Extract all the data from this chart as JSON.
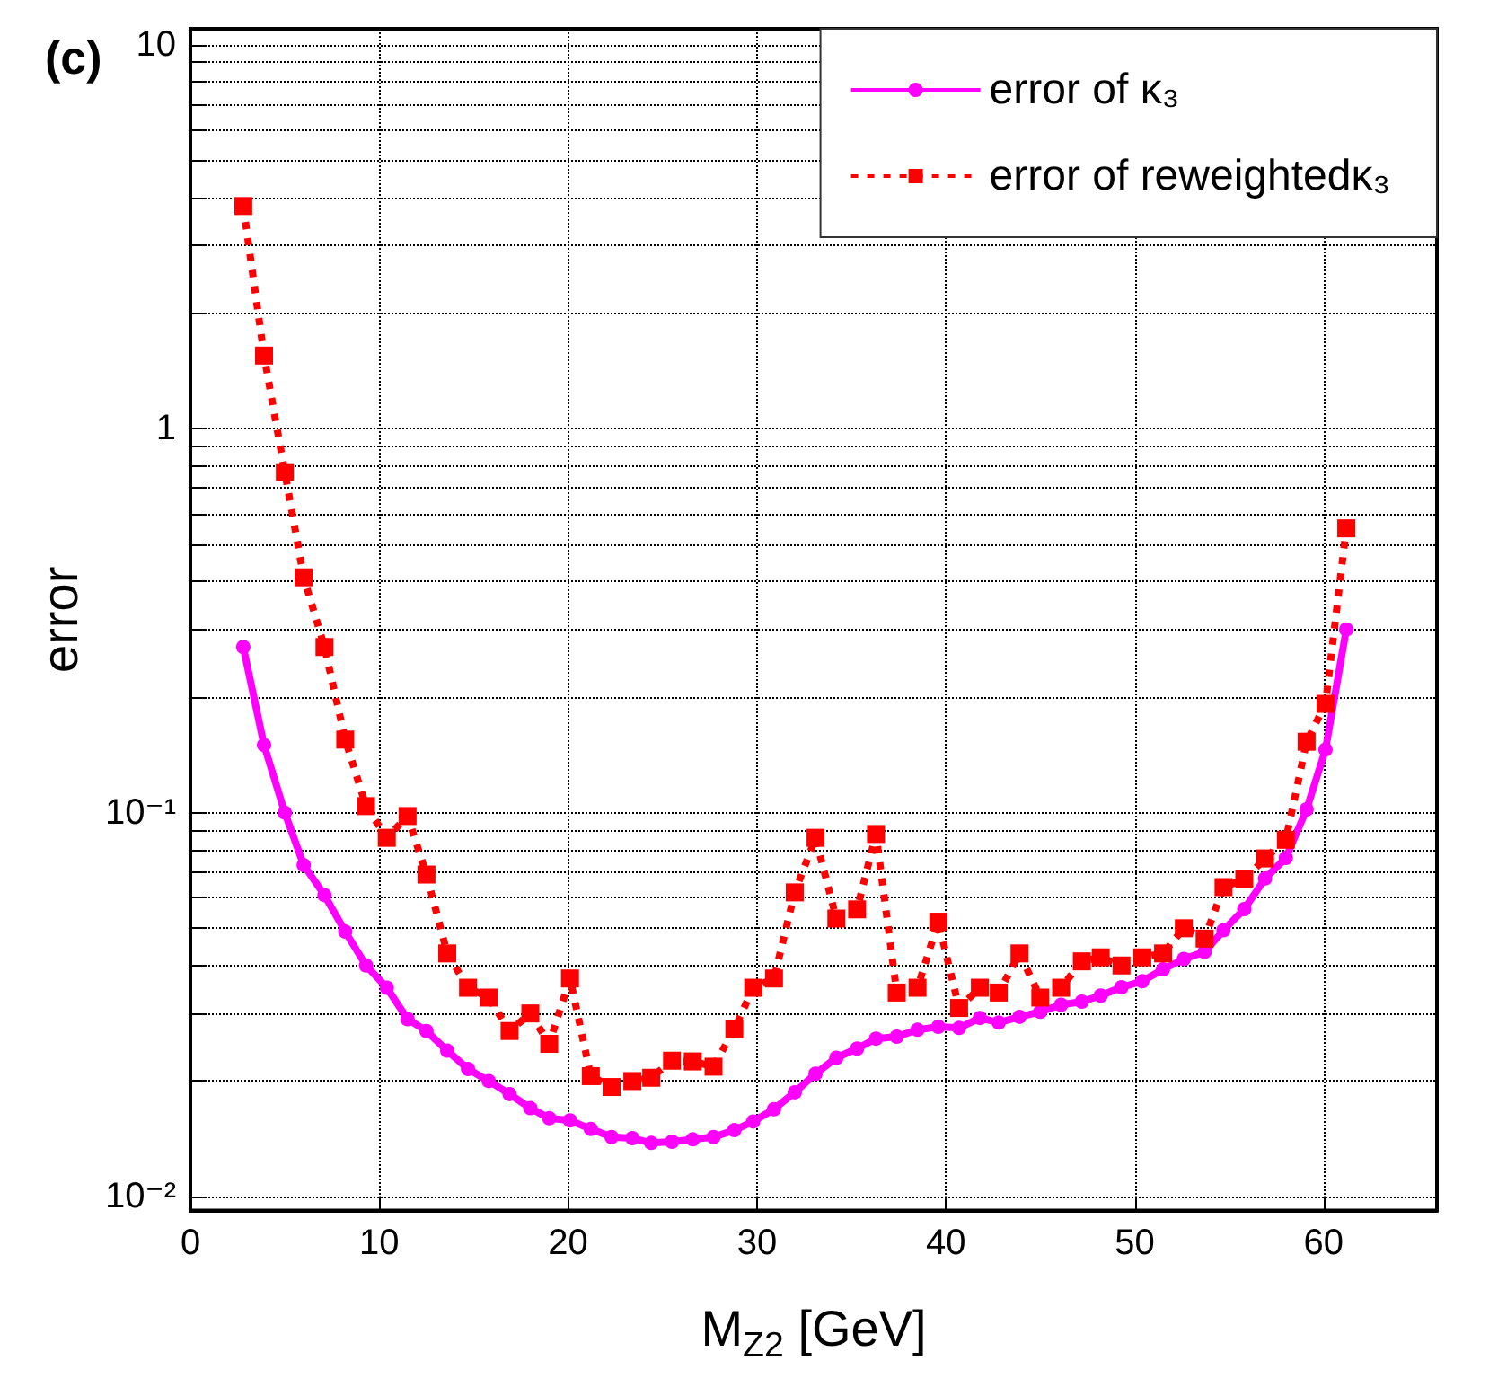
{
  "chart_data": {
    "type": "line",
    "title": "(c)",
    "xlabel": "M$_{Z2}$ [GeV]",
    "ylabel": "error",
    "x": [
      2.8,
      3.9,
      5.0,
      6.0,
      7.1,
      8.2,
      9.3,
      10.4,
      11.5,
      12.5,
      13.6,
      14.7,
      15.8,
      16.9,
      18.0,
      19.0,
      20.1,
      21.2,
      22.3,
      23.4,
      24.4,
      25.5,
      26.6,
      27.7,
      28.8,
      29.8,
      30.9,
      32.0,
      33.1,
      34.2,
      35.3,
      36.3,
      37.4,
      38.5,
      39.6,
      40.7,
      41.8,
      42.8,
      43.9,
      45.0,
      46.1,
      47.2,
      48.2,
      49.3,
      50.4,
      51.5,
      52.6,
      53.7,
      54.7,
      55.8,
      56.9,
      58.0,
      59.1,
      60.1,
      61.2
    ],
    "series": [
      {
        "name": "error of κ₃",
        "color": "#ff00ff",
        "marker": "circle",
        "line_style": "solid",
        "values": [
          0.27,
          0.15,
          0.1,
          0.073,
          0.061,
          0.049,
          0.04,
          0.035,
          0.029,
          0.027,
          0.024,
          0.0215,
          0.02,
          0.0185,
          0.017,
          0.016,
          0.0158,
          0.015,
          0.0143,
          0.0142,
          0.0138,
          0.0139,
          0.0141,
          0.0143,
          0.0149,
          0.0157,
          0.0169,
          0.0187,
          0.0209,
          0.023,
          0.0243,
          0.0258,
          0.0261,
          0.0272,
          0.0277,
          0.0275,
          0.0292,
          0.0284,
          0.0294,
          0.0303,
          0.0316,
          0.0322,
          0.0334,
          0.0351,
          0.0364,
          0.0391,
          0.0416,
          0.0434,
          0.0494,
          0.0561,
          0.0674,
          0.0762,
          0.102,
          0.146,
          0.3
        ]
      },
      {
        "name": "error of reweightedκ₃",
        "color": "#ff0000",
        "marker": "square",
        "line_style": "dotted",
        "values": [
          3.8,
          1.55,
          0.77,
          0.41,
          0.27,
          0.155,
          0.104,
          0.086,
          0.098,
          0.069,
          0.043,
          0.035,
          0.033,
          0.027,
          0.03,
          0.025,
          0.037,
          0.0206,
          0.0193,
          0.02,
          0.0204,
          0.0226,
          0.0225,
          0.0218,
          0.0273,
          0.035,
          0.037,
          0.062,
          0.086,
          0.053,
          0.056,
          0.088,
          0.034,
          0.035,
          0.052,
          0.031,
          0.035,
          0.034,
          0.043,
          0.033,
          0.035,
          0.041,
          0.042,
          0.04,
          0.042,
          0.043,
          0.05,
          0.047,
          0.064,
          0.067,
          0.076,
          0.085,
          0.153,
          0.192,
          0.55
        ]
      }
    ],
    "xlim": [
      0,
      66
    ],
    "xticks": [
      0,
      10,
      20,
      30,
      40,
      50,
      60
    ],
    "log": "y",
    "ylim": [
      0.0092,
      11
    ],
    "yticks": [
      {
        "value": 0.01,
        "label": "10⁻²"
      },
      {
        "value": 0.02,
        "label": null
      },
      {
        "value": 0.03,
        "label": null
      },
      {
        "value": 0.04,
        "label": null
      },
      {
        "value": 0.05,
        "label": null
      },
      {
        "value": 0.06,
        "label": null
      },
      {
        "value": 0.07,
        "label": null
      },
      {
        "value": 0.08,
        "label": null
      },
      {
        "value": 0.09,
        "label": null
      },
      {
        "value": 0.1,
        "label": "10⁻¹"
      },
      {
        "value": 0.2,
        "label": null
      },
      {
        "value": 0.3,
        "label": null
      },
      {
        "value": 0.4,
        "label": null
      },
      {
        "value": 0.5,
        "label": null
      },
      {
        "value": 0.6,
        "label": null
      },
      {
        "value": 0.7,
        "label": null
      },
      {
        "value": 0.8,
        "label": null
      },
      {
        "value": 0.9,
        "label": null
      },
      1,
      {
        "value": 2,
        "label": null
      },
      {
        "value": 3,
        "label": null
      },
      {
        "value": 4,
        "label": null
      },
      {
        "value": 5,
        "label": null
      },
      {
        "value": 6,
        "label": null
      },
      {
        "value": 7,
        "label": null
      },
      {
        "value": 8,
        "label": null
      },
      {
        "value": 9,
        "label": null
      },
      10
    ],
    "grid": true,
    "legend": "top right"
  }
}
